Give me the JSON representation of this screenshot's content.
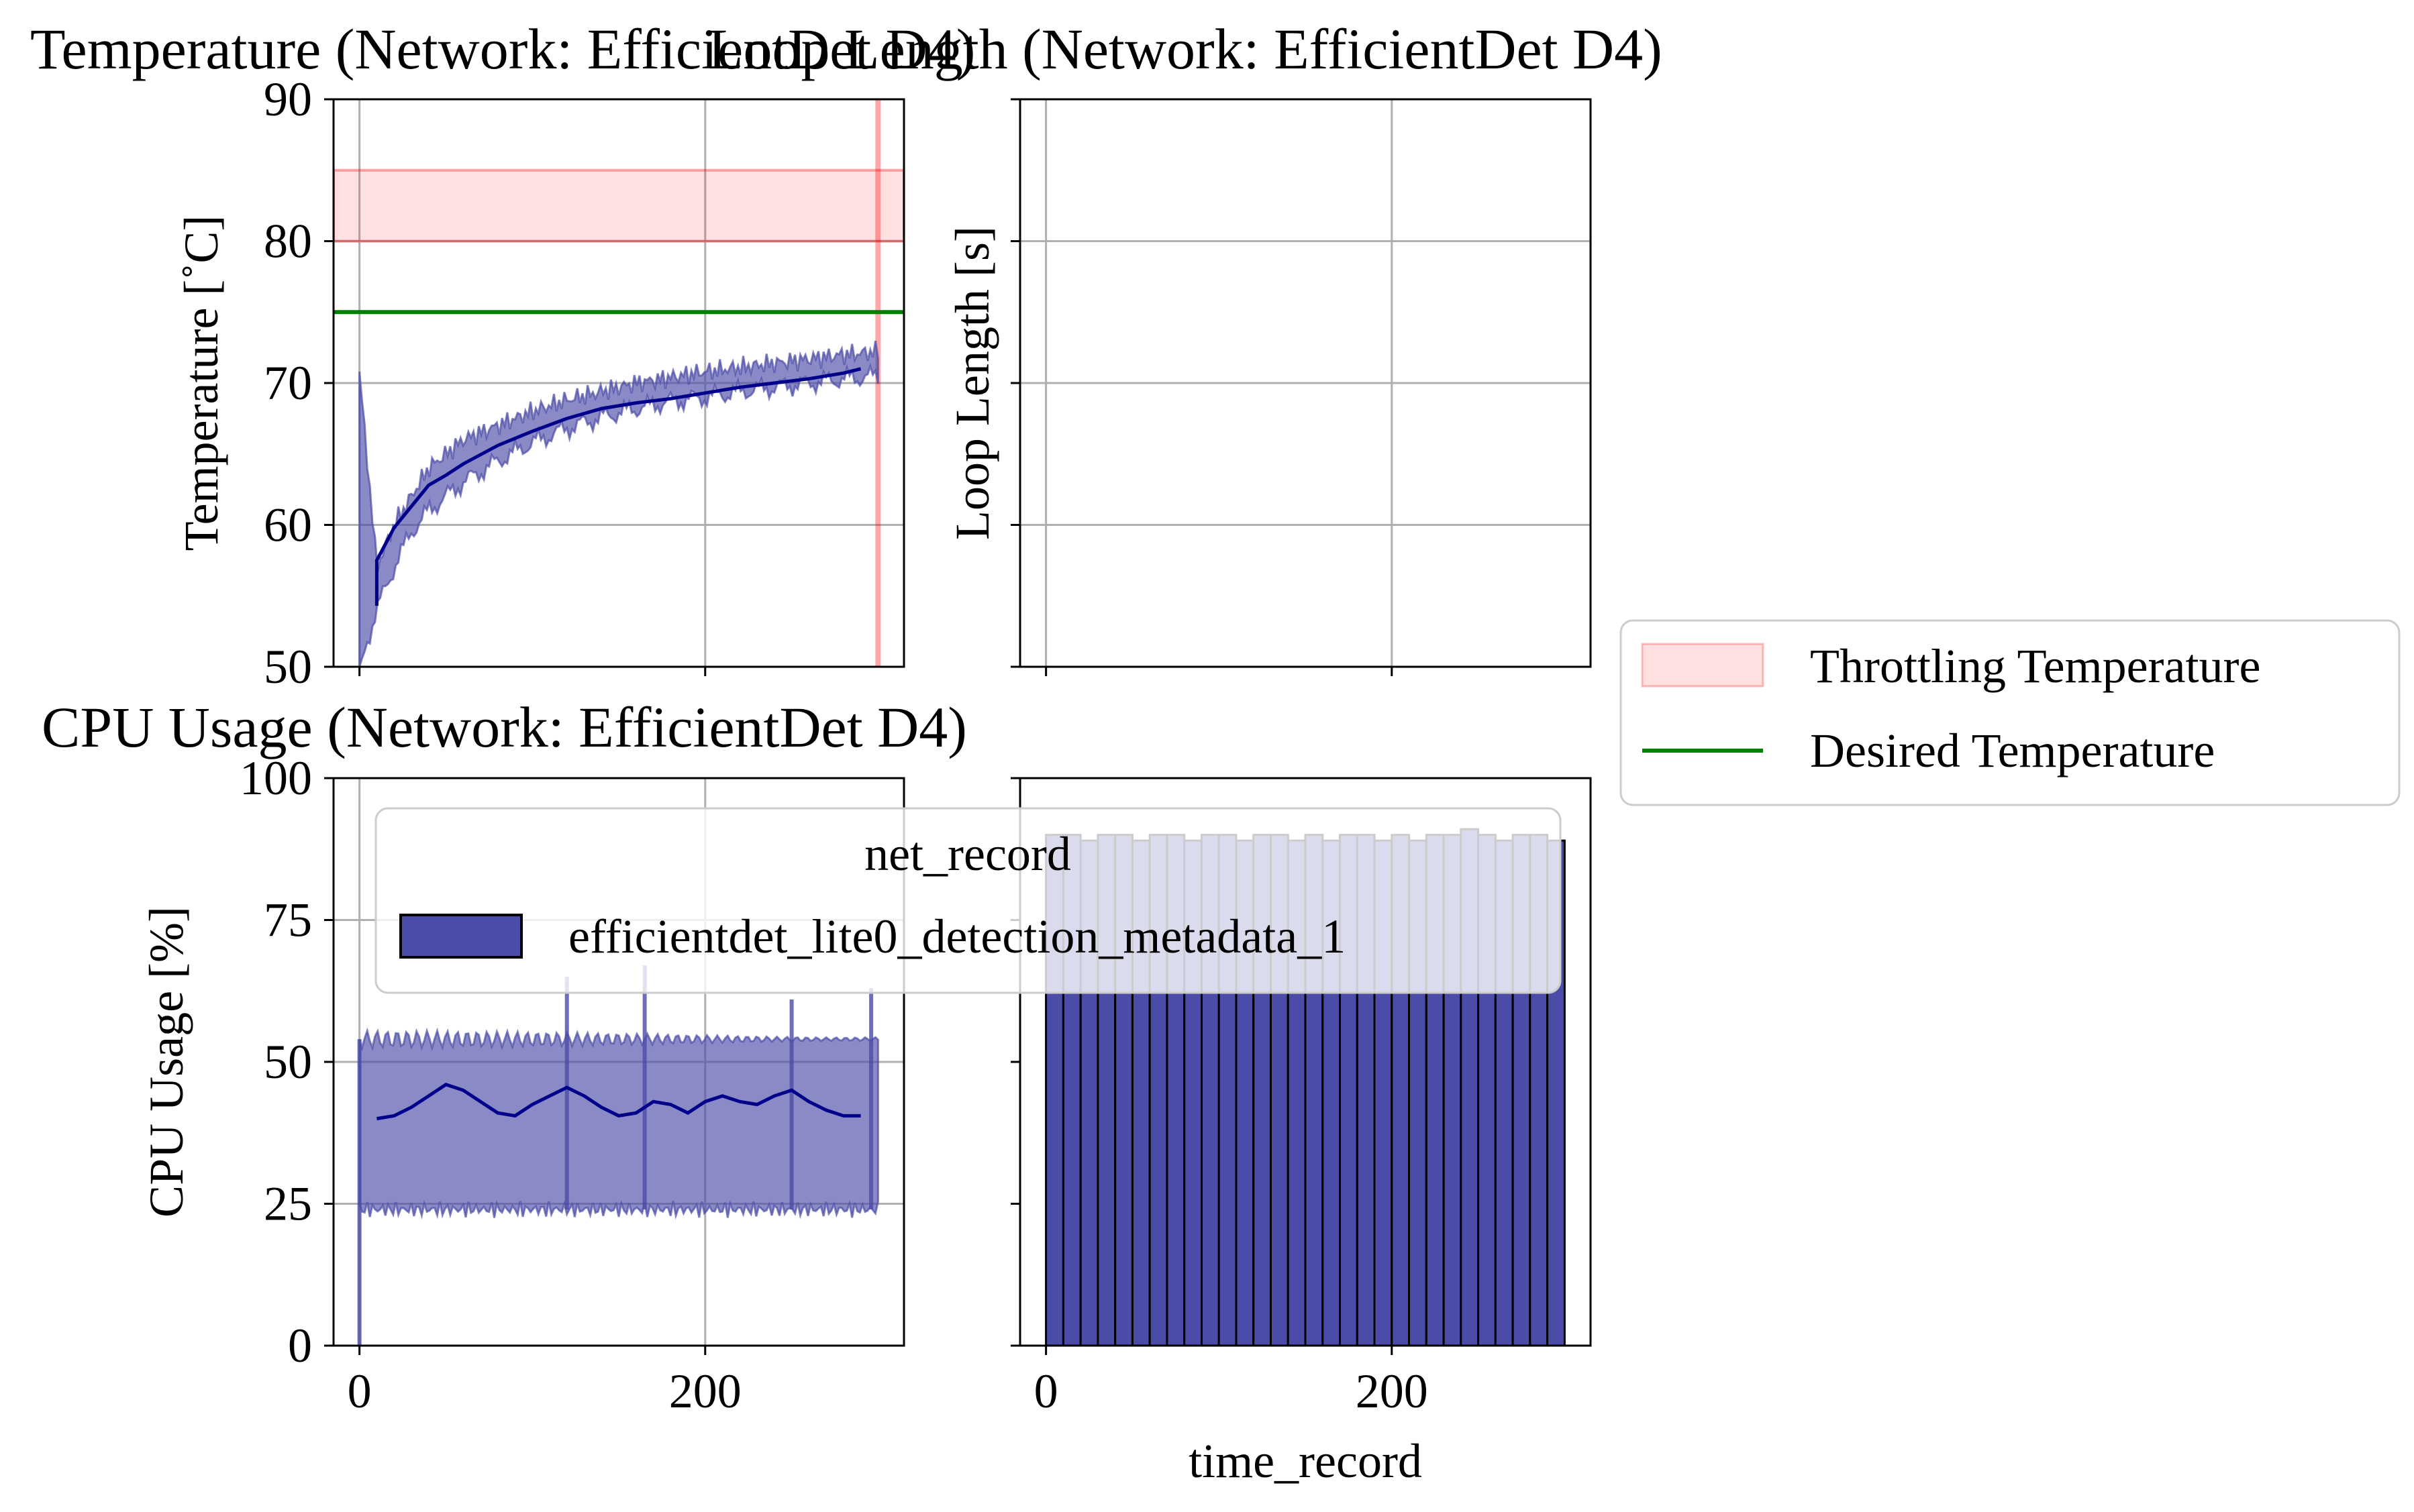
{
  "figure": {
    "background": "#ffffff",
    "colors": {
      "throttle_band": "#ff0000",
      "desired_line": "#008000",
      "series_main": "#00008b",
      "series_fill": "#4b4ba8",
      "legend_patch": "#4b4ba8"
    }
  },
  "chart_data": [
    {
      "id": "temperature",
      "type": "line",
      "title": "Temperature (Network: EfficientDet D4)",
      "xlabel": "",
      "ylabel": "Temperature [$^{\\circ}$C]",
      "ylabel_display": "Temperature [˚C]",
      "xlim": [
        -15,
        315
      ],
      "ylim": [
        50,
        90
      ],
      "xticks": [
        0,
        200
      ],
      "yticks": [
        50,
        60,
        70,
        80,
        90
      ],
      "grid": true,
      "throttling_band": [
        80,
        85
      ],
      "throttling_start_x": 300,
      "desired_temperature": 75,
      "raw_band": {
        "x": [
          0,
          10,
          20,
          30,
          40,
          50,
          60,
          80,
          100,
          120,
          140,
          160,
          180,
          200,
          220,
          240,
          260,
          280,
          300
        ],
        "lower": [
          50,
          54,
          57,
          59.5,
          61,
          62,
          63,
          64.5,
          65.8,
          66.8,
          67.6,
          68.2,
          68.7,
          69,
          69.4,
          69.7,
          70,
          70.3,
          70.5
        ],
        "upper": [
          70.8,
          57,
          60,
          62,
          64,
          65,
          66,
          67,
          68,
          68.8,
          69.4,
          70,
          70.4,
          70.8,
          71.1,
          71.4,
          71.7,
          72,
          72.2
        ]
      },
      "rolling_mean": {
        "x": [
          10,
          10,
          20,
          30,
          40,
          50,
          60,
          80,
          100,
          120,
          140,
          160,
          180,
          200,
          220,
          240,
          260,
          280,
          290
        ],
        "y": [
          54.3,
          57.5,
          59.8,
          61.3,
          62.8,
          63.5,
          64.3,
          65.6,
          66.6,
          67.5,
          68.2,
          68.6,
          68.9,
          69.3,
          69.7,
          70.0,
          70.3,
          70.7,
          71.0
        ]
      }
    },
    {
      "id": "loop_length",
      "type": "line",
      "title": "Loop Length (Network: EfficientDet D4)",
      "xlabel": "",
      "ylabel": "Loop Length [s]",
      "xlim": [
        -15,
        315
      ],
      "grid": true,
      "series": []
    },
    {
      "id": "cpu_usage",
      "type": "line",
      "title": "CPU Usage (Network: EfficientDet D4)",
      "xlabel": "",
      "ylabel": "CPU Usage [%]",
      "xlim": [
        -15,
        315
      ],
      "ylim": [
        0,
        100
      ],
      "xticks": [
        0,
        200
      ],
      "yticks": [
        0,
        25,
        50,
        75,
        100
      ],
      "grid": true,
      "raw_band": {
        "x_start": 0,
        "x_end": 300,
        "lower": 24,
        "upper": 54,
        "spikes": [
          {
            "x": 0,
            "lower": 0,
            "upper": 54
          },
          {
            "x": 120,
            "lower": 24,
            "upper": 65
          },
          {
            "x": 165,
            "lower": 24,
            "upper": 67
          },
          {
            "x": 250,
            "lower": 24,
            "upper": 61
          },
          {
            "x": 296,
            "lower": 24,
            "upper": 63
          }
        ]
      },
      "rolling_mean": {
        "x": [
          10,
          20,
          30,
          40,
          50,
          60,
          70,
          80,
          90,
          100,
          110,
          120,
          130,
          140,
          150,
          160,
          170,
          180,
          190,
          200,
          210,
          220,
          230,
          240,
          250,
          260,
          270,
          280,
          290
        ],
        "y": [
          40,
          40.5,
          42,
          44,
          46,
          45,
          43,
          41,
          40.5,
          42.5,
          44,
          45.5,
          44,
          42,
          40.5,
          41,
          43,
          42.5,
          41,
          43,
          44,
          43,
          42.5,
          44,
          45,
          43,
          41.5,
          40.5,
          40.5
        ]
      }
    },
    {
      "id": "net_record_hist",
      "type": "bar",
      "title": "",
      "xlabel": "time_record",
      "ylabel": "",
      "xlim": [
        -15,
        315
      ],
      "ylim": [
        0,
        100
      ],
      "xticks": [
        0,
        200
      ],
      "grid": false,
      "bin_width": 10,
      "bin_starts": [
        0,
        10,
        20,
        30,
        40,
        50,
        60,
        70,
        80,
        90,
        100,
        110,
        120,
        130,
        140,
        150,
        160,
        170,
        180,
        190,
        200,
        210,
        220,
        230,
        240,
        250,
        260,
        270,
        280,
        290
      ],
      "series": [
        {
          "name": "efficientdet_lite0_detection_metadata_1",
          "values": [
            90,
            90,
            89,
            90,
            90,
            89,
            90,
            90,
            89,
            90,
            90,
            89,
            90,
            90,
            89,
            90,
            89,
            90,
            90,
            89,
            90,
            89,
            90,
            90,
            91,
            90,
            89,
            90,
            90,
            89
          ]
        }
      ]
    }
  ],
  "legends": {
    "net_record": {
      "title": "net_record",
      "entries": [
        {
          "label": "efficientdet_lite0_detection_metadata_1",
          "kind": "patch"
        }
      ]
    },
    "right": {
      "entries": [
        {
          "label": "Throttling Temperature",
          "kind": "band"
        },
        {
          "label": "Desired Temperature",
          "kind": "line"
        }
      ]
    }
  }
}
